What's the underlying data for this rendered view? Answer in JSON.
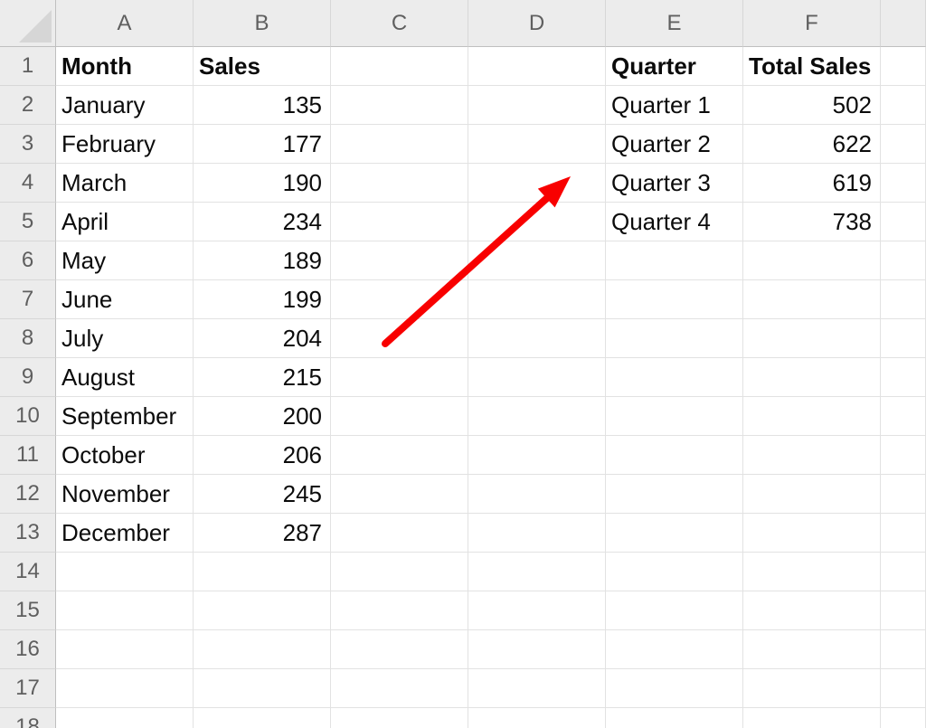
{
  "sheet": {
    "column_headers": [
      "A",
      "B",
      "C",
      "D",
      "E",
      "F"
    ],
    "row_numbers": [
      "1",
      "2",
      "3",
      "4",
      "5",
      "6",
      "7",
      "8",
      "9",
      "10",
      "11",
      "12",
      "13",
      "14",
      "15",
      "16",
      "17",
      "18"
    ],
    "monthly_sales": {
      "header_month": "Month",
      "header_sales": "Sales",
      "rows": [
        {
          "month": "January",
          "sales": "135"
        },
        {
          "month": "February",
          "sales": "177"
        },
        {
          "month": "March",
          "sales": "190"
        },
        {
          "month": "April",
          "sales": "234"
        },
        {
          "month": "May",
          "sales": "189"
        },
        {
          "month": "June",
          "sales": "199"
        },
        {
          "month": "July",
          "sales": "204"
        },
        {
          "month": "August",
          "sales": "215"
        },
        {
          "month": "September",
          "sales": "200"
        },
        {
          "month": "October",
          "sales": "206"
        },
        {
          "month": "November",
          "sales": "245"
        },
        {
          "month": "December",
          "sales": "287"
        }
      ]
    },
    "quarterly_totals": {
      "header_quarter": "Quarter",
      "header_total": "Total Sales",
      "rows": [
        {
          "quarter": "Quarter 1",
          "total": "502"
        },
        {
          "quarter": "Quarter 2",
          "total": "622"
        },
        {
          "quarter": "Quarter 3",
          "total": "619"
        },
        {
          "quarter": "Quarter 4",
          "total": "738"
        }
      ]
    }
  },
  "annotation_arrow": {
    "color": "#F80000"
  },
  "colors": {
    "header_bg": "#ECECEC",
    "header_text": "#5F5F5F",
    "gridline": "#E2E2E2",
    "header_border": "#BFBFBF",
    "cell_text": "#0B0B0B"
  }
}
